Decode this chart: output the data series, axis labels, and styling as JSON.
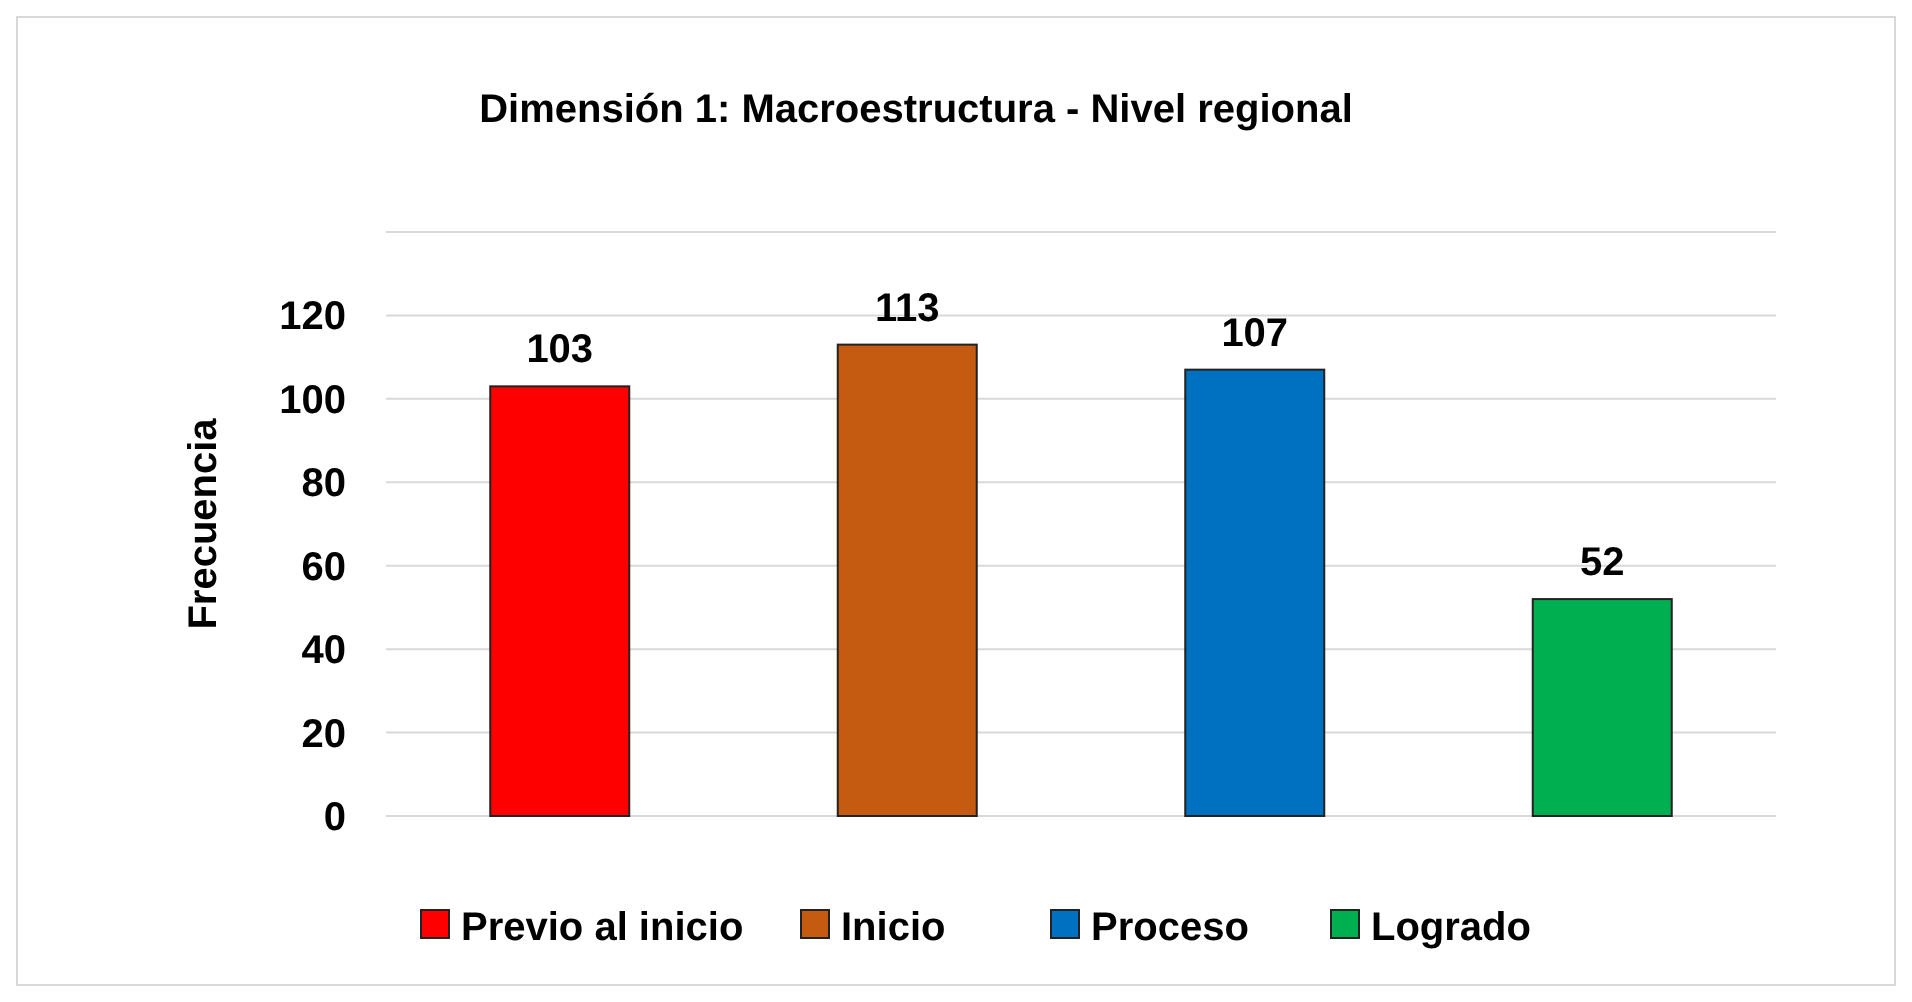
{
  "chart_data": {
    "type": "bar",
    "title": "Dimensión 1: Macroestructura - Nivel regional",
    "ylabel": "Frecuencia",
    "categories": [
      null,
      null,
      null,
      null
    ],
    "series": [
      {
        "name": "Previo al inicio",
        "color": "#ff0000",
        "values": [
          103,
          null,
          null,
          null
        ]
      },
      {
        "name": "Inicio",
        "color": "#c55a11",
        "values": [
          null,
          113,
          null,
          null
        ]
      },
      {
        "name": "Proceso",
        "color": "#0070c0",
        "values": [
          null,
          null,
          107,
          null
        ]
      },
      {
        "name": "Logrado",
        "color": "#00b050",
        "values": [
          null,
          null,
          null,
          52
        ]
      }
    ],
    "ylim": [
      0,
      140
    ],
    "yticks": [
      0,
      20,
      40,
      60,
      80,
      100,
      120,
      {
        "value": 140,
        "label": null
      }
    ],
    "grid": "y",
    "legend": "bottom",
    "tick_labels": "y",
    "data_labels": true
  }
}
